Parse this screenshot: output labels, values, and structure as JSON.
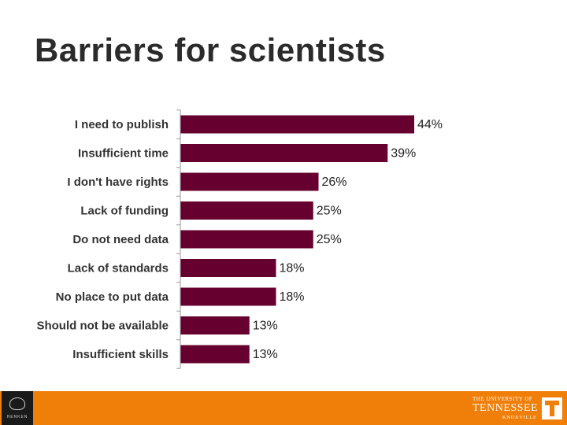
{
  "title": "Barriers for scientists",
  "chart_data": {
    "type": "bar",
    "orientation": "horizontal",
    "title": "Barriers for scientists",
    "categories": [
      "I need to publish",
      "Insufficient time",
      "I don't have rights",
      "Lack of funding",
      "Do not need data",
      "Lack of standards",
      "No place to put data",
      "Should not be available",
      "Insufficient skills"
    ],
    "values": [
      44,
      39,
      26,
      25,
      25,
      18,
      18,
      13,
      13
    ],
    "value_labels": [
      "44%",
      "39%",
      "26%",
      "25%",
      "25%",
      "18%",
      "18%",
      "13%",
      "13%"
    ],
    "xlabel": "",
    "ylabel": "",
    "xlim": [
      0,
      50
    ],
    "grid": false,
    "legend": "none",
    "bar_color": "#66002e"
  },
  "footer": {
    "background_color": "#f07f09",
    "left_logo": {
      "icon": "institute-emblem-icon",
      "text": "HENKEN"
    },
    "right_logo": {
      "icon": "power-t-icon",
      "line1": "THE UNIVERSITY OF",
      "line2": "TENNESSEE",
      "line3": "KNOXVILLE"
    }
  }
}
